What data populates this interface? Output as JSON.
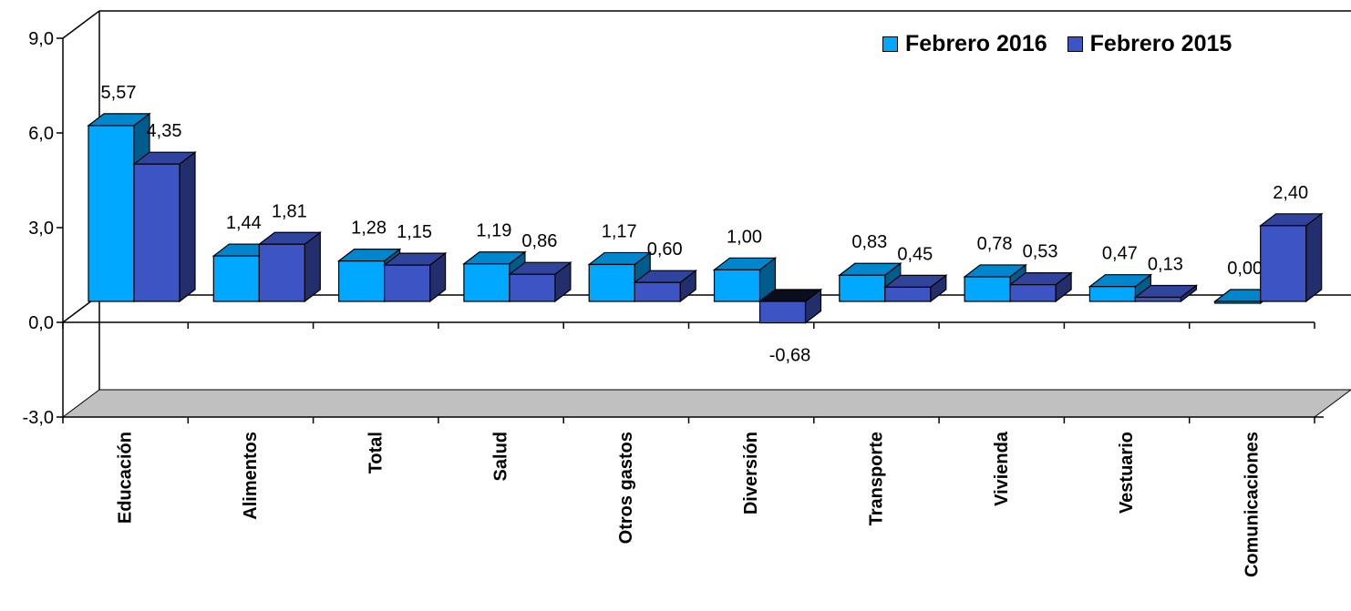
{
  "chart_data": {
    "type": "bar",
    "categories": [
      "Educación",
      "Alimentos",
      "Total",
      "Salud",
      "Otros gastos",
      "Diversión",
      "Transporte",
      "Vivienda",
      "Vestuario",
      "Comunicaciones"
    ],
    "series": [
      {
        "name": "Febrero 2016",
        "values": [
          5.57,
          1.44,
          1.28,
          1.19,
          1.17,
          1.0,
          0.83,
          0.78,
          0.47,
          0.0
        ],
        "labels": [
          "5,57",
          "1,44",
          "1,28",
          "1,19",
          "1,17",
          "1,00",
          "0,83",
          "0,78",
          "0,47",
          "0,00"
        ],
        "color": "#00A8FF"
      },
      {
        "name": "Febrero 2015",
        "values": [
          4.35,
          1.81,
          1.15,
          0.86,
          0.6,
          -0.68,
          0.45,
          0.53,
          0.13,
          2.4
        ],
        "labels": [
          "4,35",
          "1,81",
          "1,15",
          "0,86",
          "0,60",
          "-0,68",
          "0,45",
          "0,53",
          "0,13",
          "2,40"
        ],
        "color": "#3D55C4"
      }
    ],
    "y_ticks": [
      9,
      6,
      3,
      0,
      -3
    ],
    "y_tick_labels": [
      "9,0",
      "6,0",
      "3,0",
      "0,0",
      "-3,0"
    ],
    "ylim": [
      -3,
      9
    ],
    "legend_position": "top-right",
    "grid": false,
    "three_d": true
  }
}
